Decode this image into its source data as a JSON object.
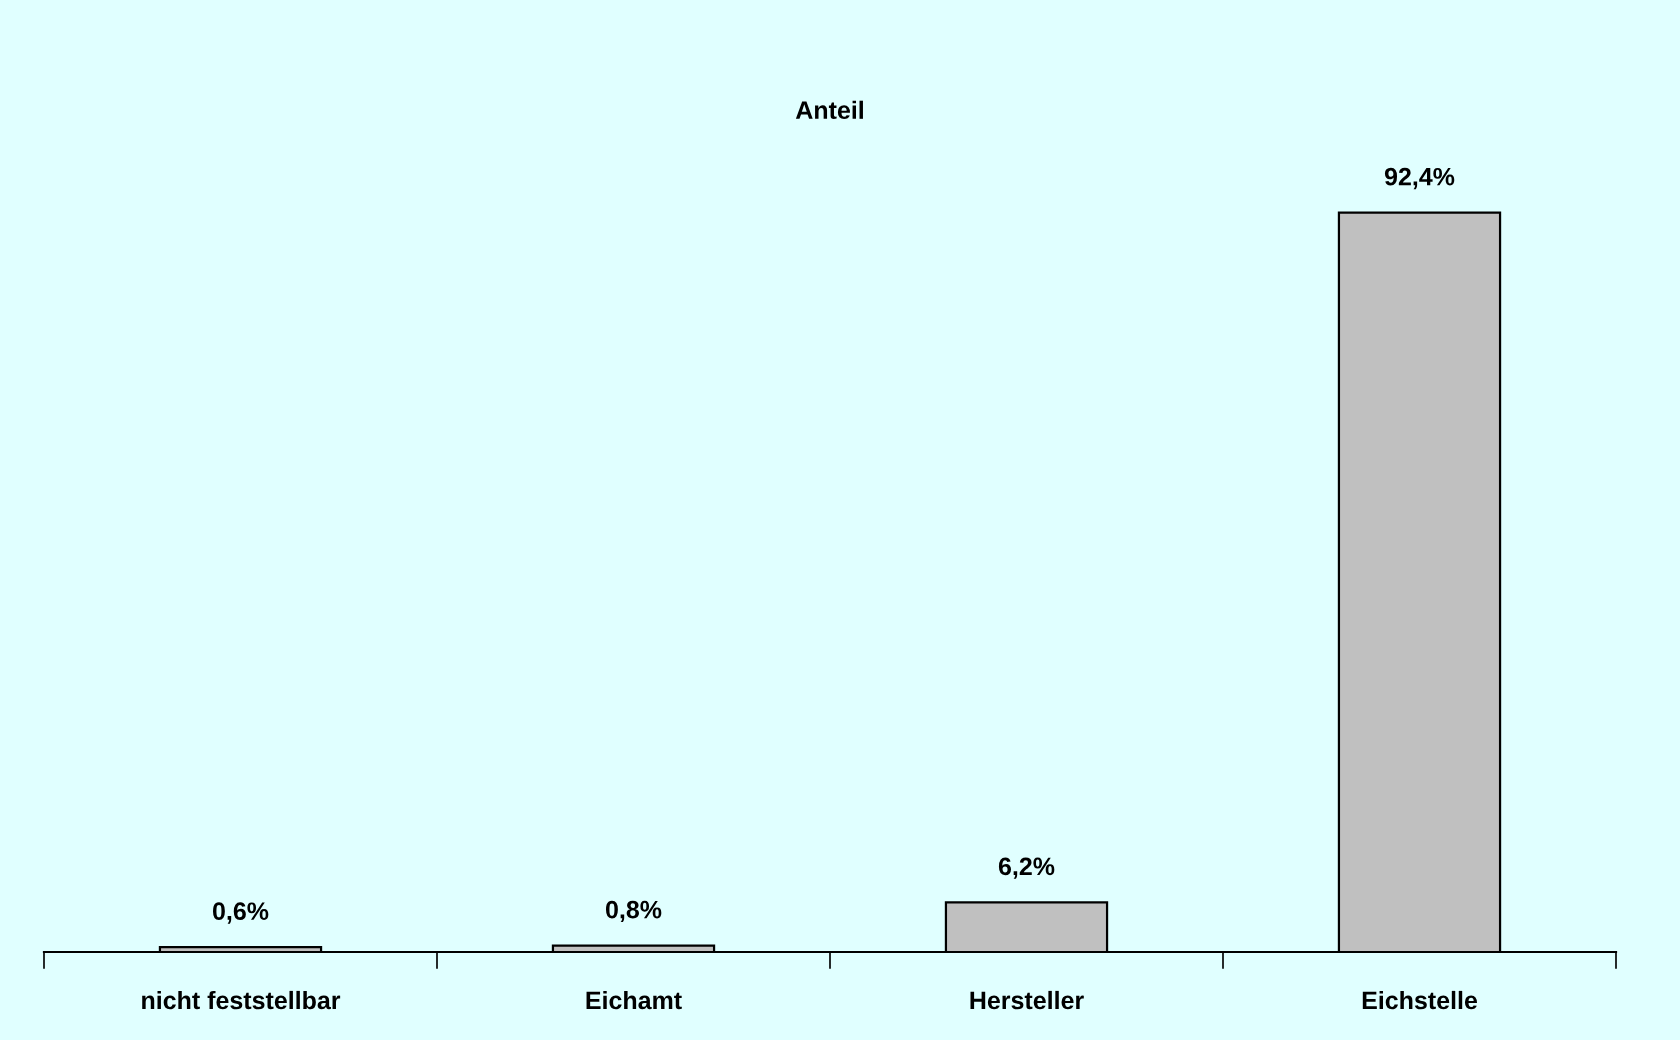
{
  "chart_data": {
    "type": "bar",
    "title": "Anteil",
    "categories": [
      "nicht feststellbar",
      "Eichamt",
      "Hersteller",
      "Eichstelle"
    ],
    "values": [
      0.6,
      0.8,
      6.2,
      92.4
    ],
    "value_labels": [
      "0,6%",
      "0,8%",
      "6,2%",
      "92,4%"
    ],
    "color": "#c0c0c0",
    "grid": false,
    "legend": false
  }
}
